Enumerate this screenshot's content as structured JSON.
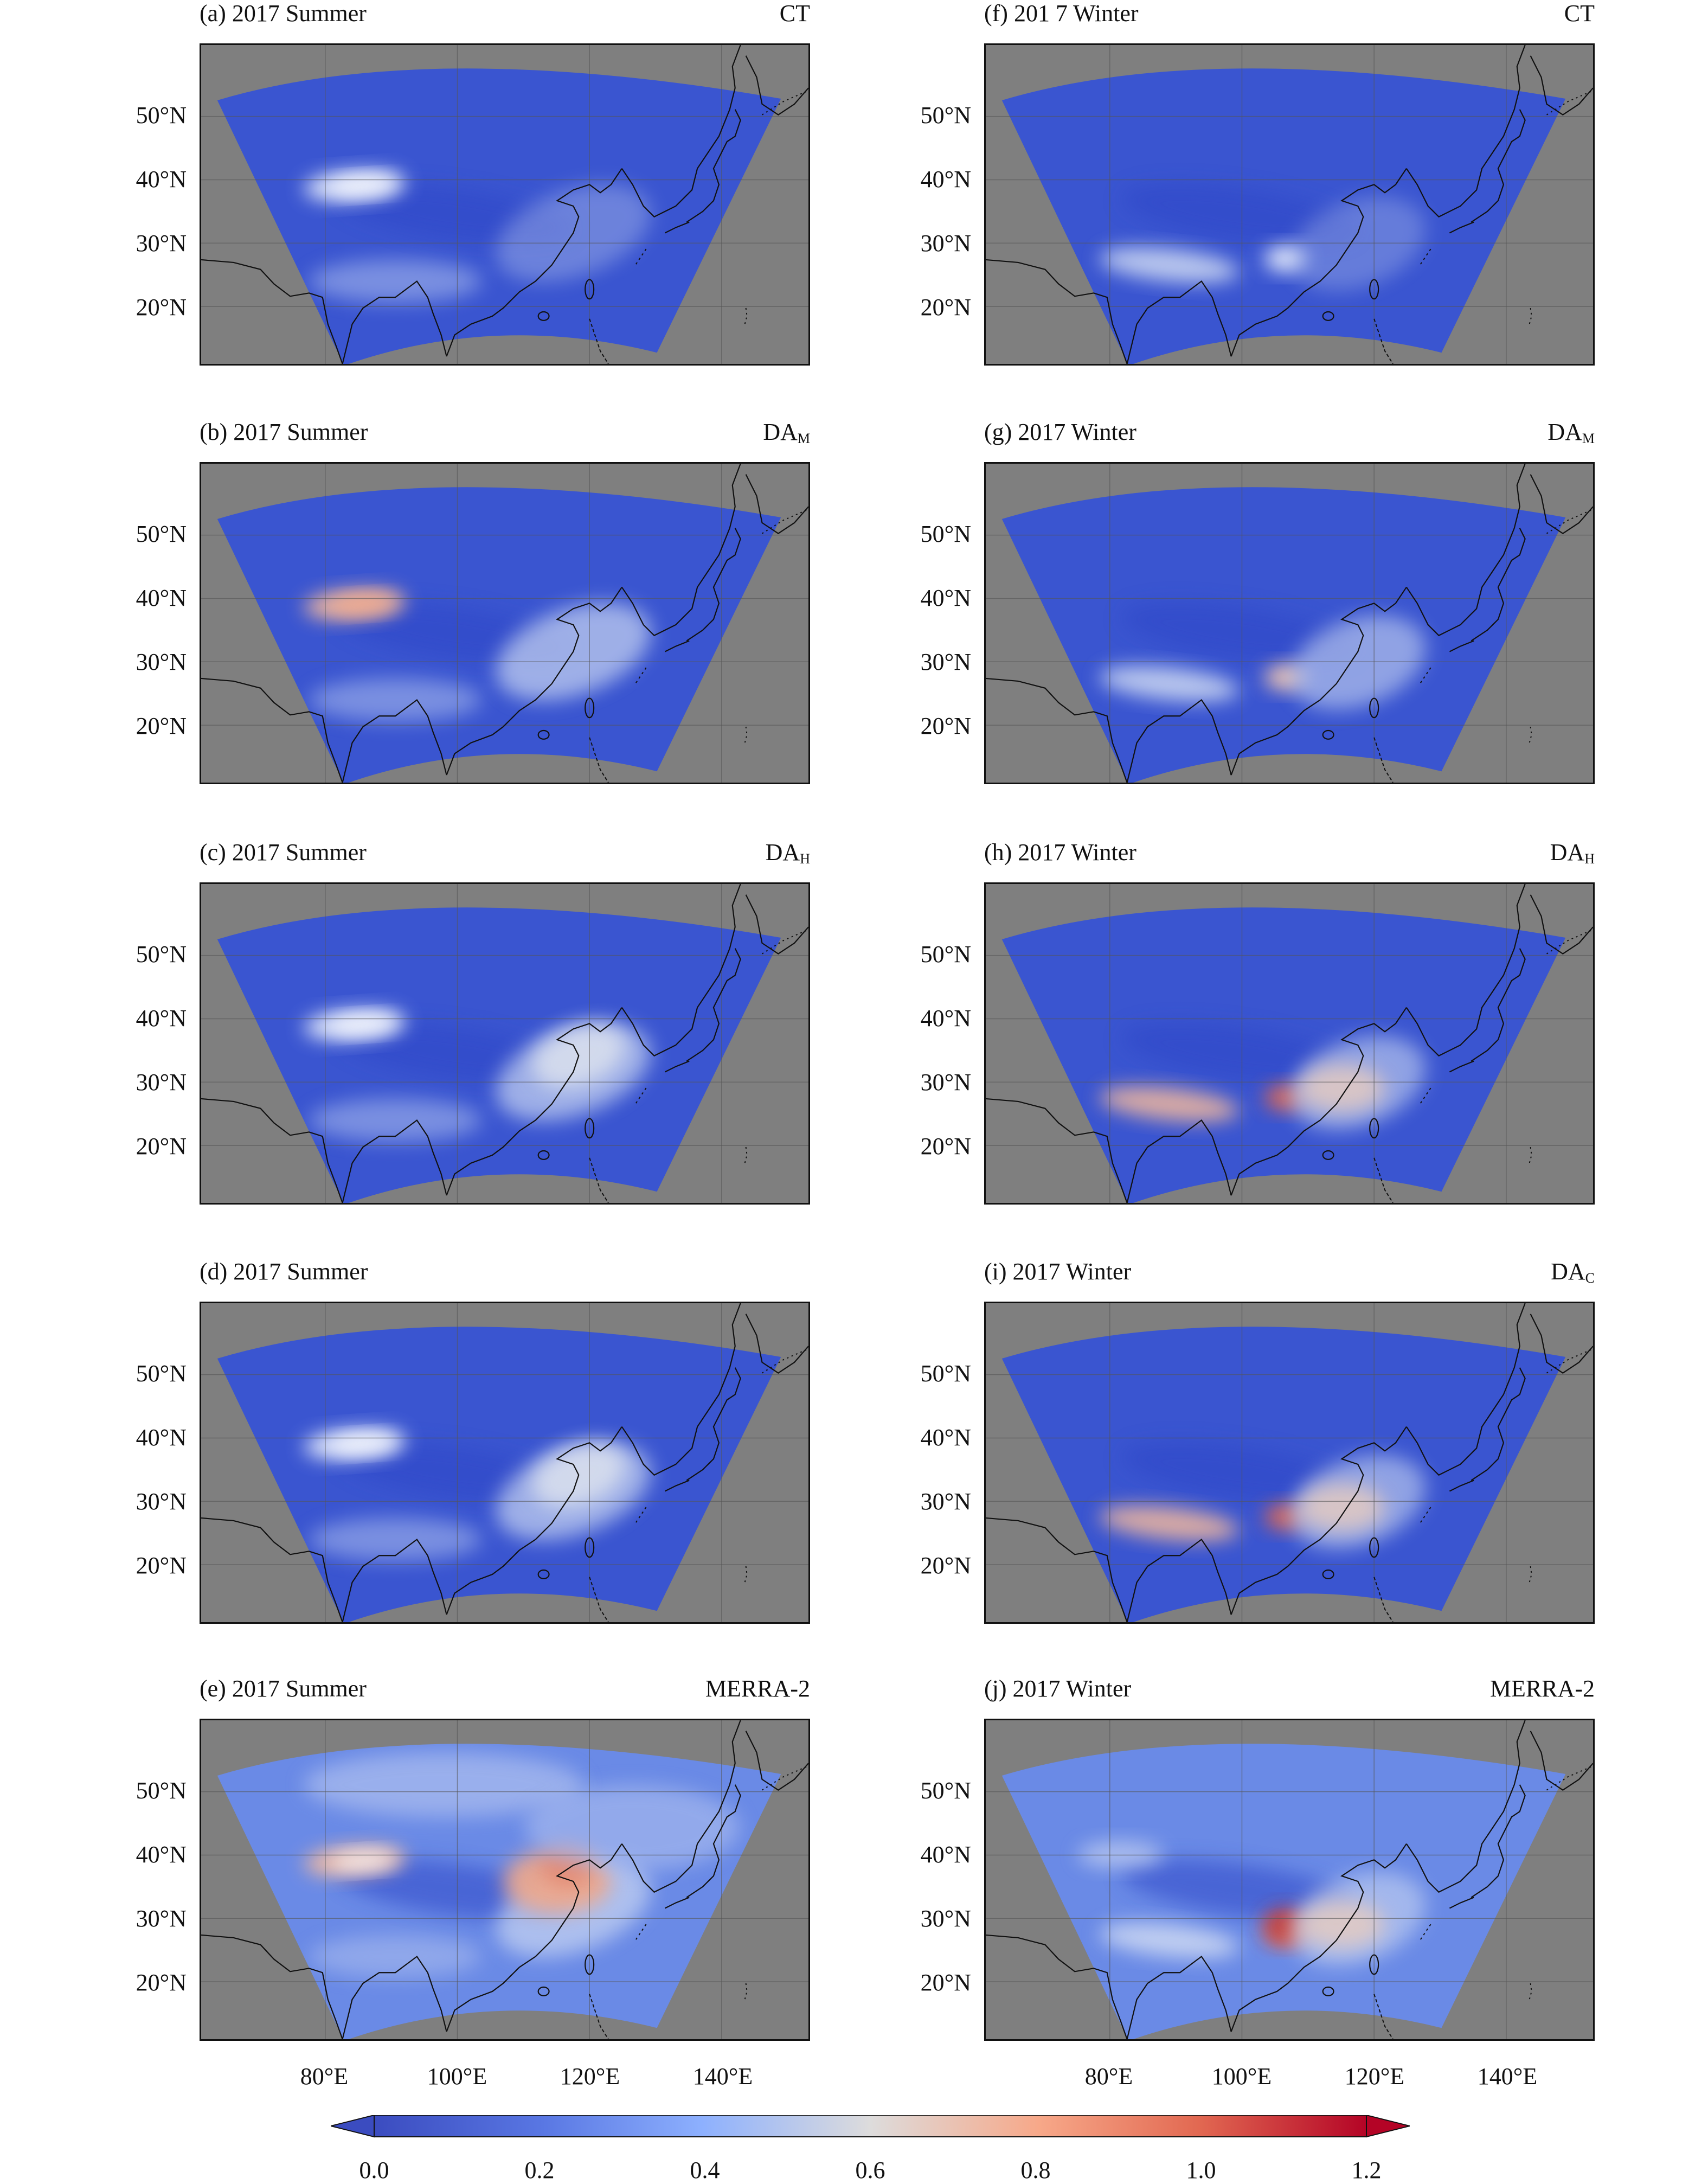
{
  "figure": {
    "panels": [
      {
        "id": "a",
        "title": "(a) 2017 Summer",
        "label_main": "CT",
        "label_sub": "",
        "season": "summer",
        "case": "ct"
      },
      {
        "id": "b",
        "title": "(b) 2017 Summer",
        "label_main": "DA",
        "label_sub": "M",
        "season": "summer",
        "case": "dam"
      },
      {
        "id": "c",
        "title": "(c) 2017 Summer",
        "label_main": "DA",
        "label_sub": "H",
        "season": "summer",
        "case": "dah"
      },
      {
        "id": "d",
        "title": "(d) 2017 Summer",
        "label_main": "",
        "label_sub": "",
        "season": "summer",
        "case": "dac"
      },
      {
        "id": "e",
        "title": "(e) 2017 Summer",
        "label_main": "MERRA-2",
        "label_sub": "",
        "season": "summer",
        "case": "merra"
      },
      {
        "id": "f",
        "title": "(f) 201 7 Winter",
        "label_main": "CT",
        "label_sub": "",
        "season": "winter",
        "case": "ct"
      },
      {
        "id": "g",
        "title": "(g) 2017 Winter",
        "label_main": "DA",
        "label_sub": "M",
        "season": "winter",
        "case": "dam"
      },
      {
        "id": "h",
        "title": "(h) 2017 Winter",
        "label_main": "DA",
        "label_sub": "H",
        "season": "winter",
        "case": "dah"
      },
      {
        "id": "i",
        "title": "(i) 2017 Winter",
        "label_main": "DA",
        "label_sub": "C",
        "season": "winter",
        "case": "dac"
      },
      {
        "id": "j",
        "title": "(j) 2017 Winter",
        "label_main": "MERRA-2",
        "label_sub": "",
        "season": "winter",
        "case": "merra"
      }
    ],
    "lat_labels": [
      "50°N",
      "40°N",
      "30°N",
      "20°N"
    ],
    "lat_values": [
      50,
      40,
      30,
      20
    ],
    "lon_labels": [
      "80°E",
      "100°E",
      "120°E",
      "140°E"
    ],
    "lon_values": [
      80,
      100,
      120,
      140
    ],
    "colorbar": {
      "ticks": [
        "0.0",
        "0.2",
        "0.4",
        "0.6",
        "0.8",
        "1.0",
        "1.2"
      ],
      "min": 0.0,
      "max": 1.2,
      "extend": "both",
      "colormap": "coolwarm"
    },
    "colors": {
      "background_gray": "#7f7f7f",
      "field_low": "#3a55d0",
      "field_mid": "#d9dde6",
      "field_high": "#b40426"
    }
  }
}
